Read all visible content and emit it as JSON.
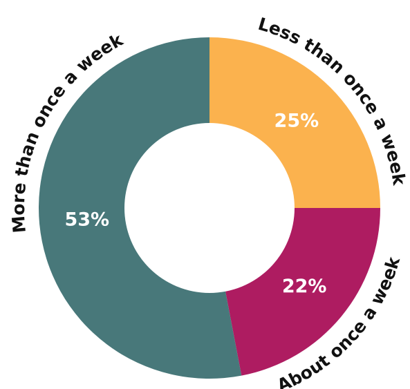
{
  "chart_data": {
    "type": "pie",
    "style": "donut",
    "legend": "none",
    "slices": [
      {
        "label": "Less than once a week",
        "value": 25,
        "value_label": "25%",
        "color": "#FBB24E"
      },
      {
        "label": "About once a week",
        "value": 22,
        "value_label": "22%",
        "color": "#AE1C61"
      },
      {
        "label": "More than once a week",
        "value": 53,
        "value_label": "53%",
        "color": "#48787A"
      }
    ]
  }
}
